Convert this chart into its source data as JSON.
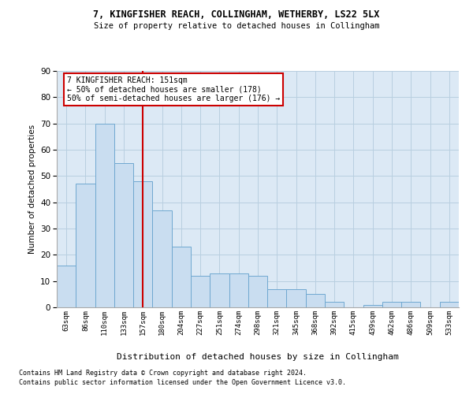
{
  "title1": "7, KINGFISHER REACH, COLLINGHAM, WETHERBY, LS22 5LX",
  "title2": "Size of property relative to detached houses in Collingham",
  "xlabel": "Distribution of detached houses by size in Collingham",
  "ylabel": "Number of detached properties",
  "categories": [
    "63sqm",
    "86sqm",
    "110sqm",
    "133sqm",
    "157sqm",
    "180sqm",
    "204sqm",
    "227sqm",
    "251sqm",
    "274sqm",
    "298sqm",
    "321sqm",
    "345sqm",
    "368sqm",
    "392sqm",
    "415sqm",
    "439sqm",
    "462sqm",
    "486sqm",
    "509sqm",
    "533sqm"
  ],
  "values": [
    16,
    47,
    70,
    55,
    48,
    37,
    23,
    12,
    13,
    13,
    12,
    7,
    7,
    5,
    2,
    0,
    1,
    2,
    2,
    0,
    2
  ],
  "bar_color": "#c9ddf0",
  "bar_edge_color": "#6fa8d0",
  "red_line_index": 4,
  "annotation_line1": "7 KINGFISHER REACH: 151sqm",
  "annotation_line2": "← 50% of detached houses are smaller (178)",
  "annotation_line3": "50% of semi-detached houses are larger (176) →",
  "annotation_box_color": "#ffffff",
  "annotation_box_edge": "#cc0000",
  "footnote1": "Contains HM Land Registry data © Crown copyright and database right 2024.",
  "footnote2": "Contains public sector information licensed under the Open Government Licence v3.0.",
  "bg_color": "#ffffff",
  "plot_bg_color": "#dce9f5",
  "grid_color": "#b8cfe0",
  "ylim": [
    0,
    90
  ],
  "yticks": [
    0,
    10,
    20,
    30,
    40,
    50,
    60,
    70,
    80,
    90
  ]
}
